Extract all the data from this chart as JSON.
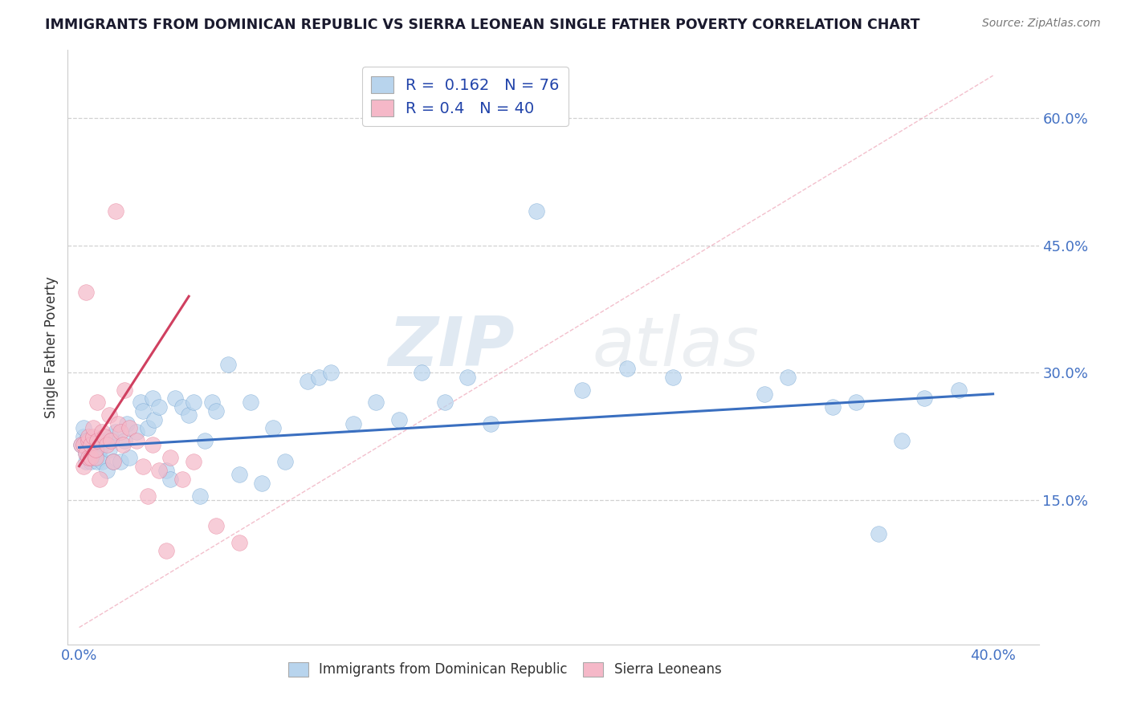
{
  "title": "IMMIGRANTS FROM DOMINICAN REPUBLIC VS SIERRA LEONEAN SINGLE FATHER POVERTY CORRELATION CHART",
  "source": "Source: ZipAtlas.com",
  "ylabel": "Single Father Poverty",
  "xlim": [
    -0.005,
    0.42
  ],
  "ylim": [
    -0.02,
    0.68
  ],
  "xticks": [
    0.0,
    0.1,
    0.2,
    0.3,
    0.4
  ],
  "xtick_labels": [
    "0.0%",
    "",
    "",
    "",
    "40.0%"
  ],
  "yticks": [
    0.15,
    0.3,
    0.45,
    0.6
  ],
  "ytick_labels": [
    "15.0%",
    "30.0%",
    "45.0%",
    "60.0%"
  ],
  "blue_R": 0.162,
  "blue_N": 76,
  "pink_R": 0.4,
  "pink_N": 40,
  "blue_fill_color": "#b8d4ed",
  "pink_fill_color": "#f5b8c8",
  "blue_edge_color": "#5590c8",
  "pink_edge_color": "#e06080",
  "blue_line_color": "#3a6fc0",
  "pink_line_color": "#d04060",
  "watermark_zip": "ZIP",
  "watermark_atlas": "atlas",
  "blue_scatter_x": [
    0.001,
    0.002,
    0.002,
    0.003,
    0.003,
    0.003,
    0.004,
    0.004,
    0.005,
    0.005,
    0.005,
    0.006,
    0.006,
    0.007,
    0.007,
    0.008,
    0.008,
    0.009,
    0.009,
    0.01,
    0.01,
    0.011,
    0.012,
    0.013,
    0.014,
    0.015,
    0.016,
    0.018,
    0.02,
    0.021,
    0.022,
    0.025,
    0.027,
    0.028,
    0.03,
    0.032,
    0.033,
    0.035,
    0.038,
    0.04,
    0.042,
    0.045,
    0.048,
    0.05,
    0.053,
    0.055,
    0.058,
    0.06,
    0.065,
    0.07,
    0.075,
    0.08,
    0.085,
    0.09,
    0.1,
    0.105,
    0.11,
    0.12,
    0.13,
    0.14,
    0.15,
    0.16,
    0.17,
    0.18,
    0.2,
    0.22,
    0.24,
    0.26,
    0.3,
    0.31,
    0.33,
    0.34,
    0.35,
    0.36,
    0.37,
    0.385
  ],
  "blue_scatter_y": [
    0.215,
    0.225,
    0.235,
    0.205,
    0.22,
    0.195,
    0.215,
    0.2,
    0.215,
    0.195,
    0.21,
    0.2,
    0.21,
    0.205,
    0.215,
    0.195,
    0.22,
    0.2,
    0.21,
    0.195,
    0.215,
    0.22,
    0.185,
    0.21,
    0.225,
    0.195,
    0.23,
    0.195,
    0.22,
    0.24,
    0.2,
    0.23,
    0.265,
    0.255,
    0.235,
    0.27,
    0.245,
    0.26,
    0.185,
    0.175,
    0.27,
    0.26,
    0.25,
    0.265,
    0.155,
    0.22,
    0.265,
    0.255,
    0.31,
    0.18,
    0.265,
    0.17,
    0.235,
    0.195,
    0.29,
    0.295,
    0.3,
    0.24,
    0.265,
    0.245,
    0.3,
    0.265,
    0.295,
    0.24,
    0.49,
    0.28,
    0.305,
    0.295,
    0.275,
    0.295,
    0.26,
    0.265,
    0.11,
    0.22,
    0.27,
    0.28
  ],
  "pink_scatter_x": [
    0.001,
    0.002,
    0.002,
    0.003,
    0.003,
    0.004,
    0.004,
    0.004,
    0.005,
    0.005,
    0.006,
    0.006,
    0.007,
    0.007,
    0.008,
    0.008,
    0.009,
    0.01,
    0.011,
    0.012,
    0.013,
    0.014,
    0.015,
    0.016,
    0.017,
    0.018,
    0.019,
    0.02,
    0.022,
    0.025,
    0.028,
    0.03,
    0.032,
    0.035,
    0.038,
    0.04,
    0.045,
    0.05,
    0.06,
    0.07
  ],
  "pink_scatter_y": [
    0.215,
    0.19,
    0.215,
    0.205,
    0.395,
    0.2,
    0.22,
    0.225,
    0.215,
    0.2,
    0.225,
    0.235,
    0.2,
    0.21,
    0.22,
    0.265,
    0.175,
    0.23,
    0.225,
    0.215,
    0.25,
    0.22,
    0.195,
    0.49,
    0.24,
    0.23,
    0.215,
    0.28,
    0.235,
    0.22,
    0.19,
    0.155,
    0.215,
    0.185,
    0.09,
    0.2,
    0.175,
    0.195,
    0.12,
    0.1
  ],
  "blue_trend_x": [
    0.0,
    0.4
  ],
  "blue_trend_y": [
    0.212,
    0.275
  ],
  "pink_trend_x": [
    0.0,
    0.048
  ],
  "pink_trend_y": [
    0.19,
    0.39
  ]
}
